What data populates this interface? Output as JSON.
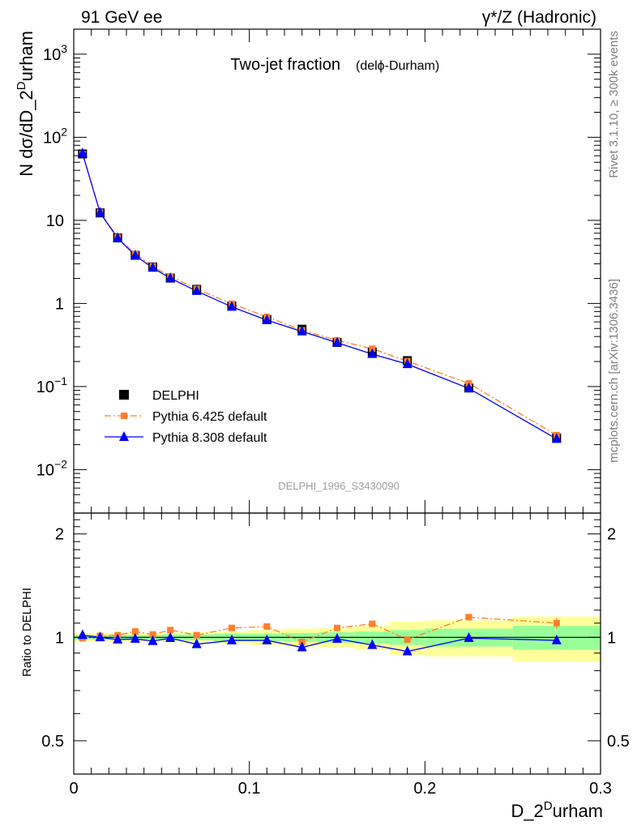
{
  "header": {
    "left": "91 GeV ee",
    "right": "γ*/Z (Hadronic)"
  },
  "side_labels": {
    "rivet": "Rivet 3.1.10, ≥ 300k events",
    "mcplots": "mcplots.cern.ch [arXiv:1306.3436]"
  },
  "chart_data": {
    "type": "scatter",
    "title": "Two-jet fraction",
    "title_sub": "(delϕ-Durham)",
    "watermark": "DELPHI_1996_S3430090",
    "xlabel_main": "D_2",
    "xlabel_sup": "D",
    "xlabel_tail": "urham",
    "ylabel_main": "N dσ/dD_2",
    "ylabel_sup": "D",
    "ylabel_tail": "urham",
    "ratio_ylabel": "Ratio to DELPHI",
    "xlim": [
      0,
      0.3
    ],
    "ylim": [
      0.003,
      2000
    ],
    "yscale": "log",
    "ratio_ylim": [
      0.4,
      2.3
    ],
    "x_ticks": [
      "0",
      "0.1",
      "0.2",
      "0.3"
    ],
    "y_ticks": [
      {
        "base": "10",
        "exp": "3"
      },
      {
        "base": "10",
        "exp": "2"
      },
      {
        "base": "10",
        "exp": ""
      },
      {
        "base": "1",
        "exp": ""
      },
      {
        "base": "10",
        "exp": "−1"
      },
      {
        "base": "10",
        "exp": "−2"
      }
    ],
    "ratio_ticks": [
      "2",
      "1",
      "0.5"
    ],
    "legend": [
      "DELPHI",
      "Pythia 6.425 default",
      "Pythia 8.308 default"
    ],
    "legend_position": "lower-left",
    "x": [
      0.005,
      0.015,
      0.025,
      0.035,
      0.045,
      0.055,
      0.07,
      0.09,
      0.11,
      0.13,
      0.15,
      0.17,
      0.19,
      0.225,
      0.275
    ],
    "bin_edges": [
      0.0,
      0.01,
      0.02,
      0.03,
      0.04,
      0.05,
      0.06,
      0.08,
      0.1,
      0.12,
      0.14,
      0.16,
      0.18,
      0.2,
      0.25,
      0.3
    ],
    "series": [
      {
        "name": "DELPHI",
        "color": "#000000",
        "marker": "square",
        "values": [
          63.0,
          12.3,
          6.15,
          3.8,
          2.75,
          2.02,
          1.48,
          0.93,
          0.64,
          0.49,
          0.34,
          0.26,
          0.205,
          0.096,
          0.024
        ]
      },
      {
        "name": "Pythia 6.425 default",
        "color": "#ff7f2a",
        "marker": "square-small",
        "linestyle": "dashdot",
        "values": [
          62.8,
          12.42,
          6.25,
          3.95,
          2.8,
          2.12,
          1.5,
          0.99,
          0.69,
          0.475,
          0.36,
          0.285,
          0.202,
          0.109,
          0.026
        ]
      },
      {
        "name": "Pythia 8.308 default",
        "color": "#0000ff",
        "marker": "triangle",
        "linestyle": "solid",
        "values": [
          64.0,
          12.35,
          6.1,
          3.77,
          2.68,
          2.01,
          1.41,
          0.91,
          0.63,
          0.46,
          0.337,
          0.246,
          0.186,
          0.095,
          0.0234
        ]
      }
    ],
    "ratio": {
      "pythia6": [
        0.995,
        1.01,
        1.015,
        1.04,
        1.02,
        1.05,
        1.015,
        1.065,
        1.075,
        0.97,
        1.065,
        1.095,
        0.985,
        1.145,
        1.1
      ],
      "pythia6_err": [
        0.005,
        0.005,
        0.005,
        0.005,
        0.005,
        0.005,
        0.005,
        0.005,
        0.005,
        0.005,
        0.005,
        0.01,
        0.015,
        0.02,
        0.04
      ],
      "pythia8": [
        1.015,
        1.0,
        0.985,
        0.99,
        0.975,
        0.995,
        0.955,
        0.98,
        0.98,
        0.935,
        0.99,
        0.95,
        0.91,
        0.995,
        0.98
      ],
      "band_stat": [
        0.015,
        0.015,
        0.015,
        0.015,
        0.015,
        0.02,
        0.02,
        0.025,
        0.025,
        0.03,
        0.035,
        0.04,
        0.05,
        0.06,
        0.08
      ],
      "band_total": [
        0.03,
        0.025,
        0.025,
        0.025,
        0.025,
        0.03,
        0.035,
        0.04,
        0.05,
        0.06,
        0.065,
        0.08,
        0.11,
        0.12,
        0.15
      ]
    },
    "colors": {
      "band_stat": "#99ff99",
      "band_total": "#ffff99"
    }
  }
}
